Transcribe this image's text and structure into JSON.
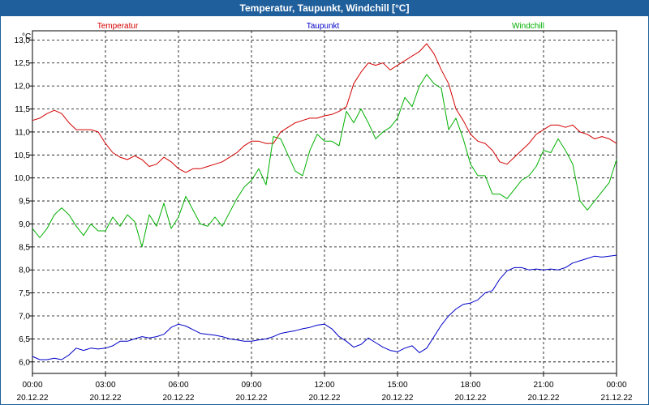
{
  "window": {
    "title": "Temperatur, Taupunkt, Windchill [°C]"
  },
  "colors": {
    "temperatur": "#d40000",
    "taupunkt": "#0000c8",
    "windchill": "#00b000",
    "titlebar": "#1f5f9b"
  },
  "chart_data": {
    "type": "line",
    "title": "Temperatur, Taupunkt, Windchill [°C]",
    "ylabel": "°C",
    "ylim": [
      5.75,
      13.2
    ],
    "xlim": [
      0,
      24
    ],
    "y_ticks": [
      "13,0",
      "12,5",
      "12,0",
      "11,5",
      "11,0",
      "10,5",
      "10,0",
      "9,5",
      "9,0",
      "8,5",
      "8,0",
      "7,5",
      "7,0",
      "6,5",
      "6,0"
    ],
    "y_tick_values": [
      13.0,
      12.5,
      12.0,
      11.5,
      11.0,
      10.5,
      10.0,
      9.5,
      9.0,
      8.5,
      8.0,
      7.5,
      7.0,
      6.5,
      6.0
    ],
    "x_tick_values": [
      0,
      3,
      6,
      9,
      12,
      15,
      18,
      21,
      24
    ],
    "x_ticks": [
      {
        "time": "00:00",
        "date": "20.12.22"
      },
      {
        "time": "03:00",
        "date": "20.12.22"
      },
      {
        "time": "06:00",
        "date": "20.12.22"
      },
      {
        "time": "09:00",
        "date": "20.12.22"
      },
      {
        "time": "12:00",
        "date": "20.12.22"
      },
      {
        "time": "15:00",
        "date": "20.12.22"
      },
      {
        "time": "18:00",
        "date": "20.12.22"
      },
      {
        "time": "21:00",
        "date": "20.12.22"
      },
      {
        "time": "00:00",
        "date": "21.12.22"
      }
    ],
    "grid": true,
    "series": [
      {
        "name": "Temperatur",
        "color": "#d40000",
        "points": [
          [
            0,
            11.25
          ],
          [
            0.3,
            11.3
          ],
          [
            0.6,
            11.4
          ],
          [
            0.9,
            11.47
          ],
          [
            1.2,
            11.4
          ],
          [
            1.5,
            11.2
          ],
          [
            1.8,
            11.05
          ],
          [
            2.1,
            11.05
          ],
          [
            2.4,
            11.05
          ],
          [
            2.7,
            11.0
          ],
          [
            3.0,
            10.75
          ],
          [
            3.3,
            10.55
          ],
          [
            3.6,
            10.45
          ],
          [
            3.9,
            10.4
          ],
          [
            4.2,
            10.48
          ],
          [
            4.5,
            10.4
          ],
          [
            4.8,
            10.25
          ],
          [
            5.1,
            10.3
          ],
          [
            5.4,
            10.45
          ],
          [
            5.7,
            10.35
          ],
          [
            6.0,
            10.2
          ],
          [
            6.3,
            10.12
          ],
          [
            6.6,
            10.2
          ],
          [
            6.9,
            10.2
          ],
          [
            7.2,
            10.25
          ],
          [
            7.5,
            10.3
          ],
          [
            7.8,
            10.35
          ],
          [
            8.1,
            10.45
          ],
          [
            8.4,
            10.55
          ],
          [
            8.7,
            10.7
          ],
          [
            9.0,
            10.8
          ],
          [
            9.3,
            10.8
          ],
          [
            9.6,
            10.75
          ],
          [
            9.9,
            10.75
          ],
          [
            10.2,
            11.0
          ],
          [
            10.5,
            11.1
          ],
          [
            10.8,
            11.2
          ],
          [
            11.1,
            11.25
          ],
          [
            11.4,
            11.3
          ],
          [
            11.7,
            11.3
          ],
          [
            12.0,
            11.35
          ],
          [
            12.3,
            11.38
          ],
          [
            12.6,
            11.45
          ],
          [
            12.9,
            11.55
          ],
          [
            13.2,
            12.05
          ],
          [
            13.5,
            12.3
          ],
          [
            13.8,
            12.5
          ],
          [
            14.1,
            12.45
          ],
          [
            14.4,
            12.5
          ],
          [
            14.7,
            12.35
          ],
          [
            15.0,
            12.45
          ],
          [
            15.3,
            12.55
          ],
          [
            15.6,
            12.65
          ],
          [
            15.9,
            12.75
          ],
          [
            16.2,
            12.92
          ],
          [
            16.5,
            12.7
          ],
          [
            16.8,
            12.35
          ],
          [
            17.1,
            12.05
          ],
          [
            17.4,
            11.5
          ],
          [
            17.7,
            11.25
          ],
          [
            18.0,
            10.95
          ],
          [
            18.3,
            10.8
          ],
          [
            18.6,
            10.75
          ],
          [
            18.9,
            10.6
          ],
          [
            19.2,
            10.35
          ],
          [
            19.5,
            10.3
          ],
          [
            19.8,
            10.45
          ],
          [
            20.1,
            10.6
          ],
          [
            20.4,
            10.75
          ],
          [
            20.7,
            10.95
          ],
          [
            21.0,
            11.05
          ],
          [
            21.3,
            11.15
          ],
          [
            21.6,
            11.15
          ],
          [
            21.9,
            11.1
          ],
          [
            22.2,
            11.15
          ],
          [
            22.5,
            11.0
          ],
          [
            22.8,
            10.95
          ],
          [
            23.1,
            10.85
          ],
          [
            23.4,
            10.9
          ],
          [
            23.7,
            10.85
          ],
          [
            24.0,
            10.75
          ]
        ]
      },
      {
        "name": "Taupunkt",
        "color": "#0000c8",
        "points": [
          [
            0,
            6.12
          ],
          [
            0.3,
            6.05
          ],
          [
            0.6,
            6.05
          ],
          [
            0.9,
            6.08
          ],
          [
            1.2,
            6.05
          ],
          [
            1.5,
            6.15
          ],
          [
            1.8,
            6.3
          ],
          [
            2.1,
            6.25
          ],
          [
            2.4,
            6.3
          ],
          [
            2.7,
            6.28
          ],
          [
            3.0,
            6.3
          ],
          [
            3.3,
            6.35
          ],
          [
            3.6,
            6.45
          ],
          [
            3.9,
            6.45
          ],
          [
            4.2,
            6.5
          ],
          [
            4.5,
            6.55
          ],
          [
            4.8,
            6.52
          ],
          [
            5.1,
            6.55
          ],
          [
            5.4,
            6.6
          ],
          [
            5.7,
            6.75
          ],
          [
            6.0,
            6.82
          ],
          [
            6.3,
            6.78
          ],
          [
            6.6,
            6.7
          ],
          [
            6.9,
            6.62
          ],
          [
            7.2,
            6.6
          ],
          [
            7.5,
            6.58
          ],
          [
            7.8,
            6.55
          ],
          [
            8.1,
            6.5
          ],
          [
            8.4,
            6.48
          ],
          [
            8.7,
            6.45
          ],
          [
            9.0,
            6.45
          ],
          [
            9.3,
            6.48
          ],
          [
            9.6,
            6.5
          ],
          [
            9.9,
            6.55
          ],
          [
            10.2,
            6.62
          ],
          [
            10.5,
            6.65
          ],
          [
            10.8,
            6.68
          ],
          [
            11.1,
            6.72
          ],
          [
            11.4,
            6.75
          ],
          [
            11.7,
            6.8
          ],
          [
            12.0,
            6.82
          ],
          [
            12.3,
            6.72
          ],
          [
            12.6,
            6.55
          ],
          [
            12.9,
            6.45
          ],
          [
            13.2,
            6.32
          ],
          [
            13.5,
            6.38
          ],
          [
            13.8,
            6.52
          ],
          [
            14.1,
            6.42
          ],
          [
            14.4,
            6.32
          ],
          [
            14.7,
            6.25
          ],
          [
            15.0,
            6.22
          ],
          [
            15.3,
            6.3
          ],
          [
            15.6,
            6.35
          ],
          [
            15.9,
            6.2
          ],
          [
            16.2,
            6.3
          ],
          [
            16.5,
            6.55
          ],
          [
            16.8,
            6.8
          ],
          [
            17.1,
            7.0
          ],
          [
            17.4,
            7.15
          ],
          [
            17.7,
            7.25
          ],
          [
            18.0,
            7.28
          ],
          [
            18.3,
            7.35
          ],
          [
            18.6,
            7.5
          ],
          [
            18.9,
            7.55
          ],
          [
            19.2,
            7.8
          ],
          [
            19.5,
            7.98
          ],
          [
            19.8,
            8.05
          ],
          [
            20.1,
            8.05
          ],
          [
            20.4,
            8.0
          ],
          [
            20.7,
            8.02
          ],
          [
            21.0,
            8.0
          ],
          [
            21.3,
            8.02
          ],
          [
            21.6,
            8.0
          ],
          [
            21.9,
            8.05
          ],
          [
            22.2,
            8.15
          ],
          [
            22.5,
            8.2
          ],
          [
            22.8,
            8.25
          ],
          [
            23.1,
            8.3
          ],
          [
            23.4,
            8.28
          ],
          [
            23.7,
            8.3
          ],
          [
            24.0,
            8.32
          ]
        ]
      },
      {
        "name": "Windchill",
        "color": "#00b000",
        "points": [
          [
            0,
            8.9
          ],
          [
            0.3,
            8.7
          ],
          [
            0.6,
            8.9
          ],
          [
            0.9,
            9.2
          ],
          [
            1.2,
            9.35
          ],
          [
            1.5,
            9.2
          ],
          [
            1.8,
            8.95
          ],
          [
            2.1,
            8.75
          ],
          [
            2.4,
            9.0
          ],
          [
            2.7,
            8.85
          ],
          [
            3.0,
            8.85
          ],
          [
            3.3,
            9.15
          ],
          [
            3.6,
            8.95
          ],
          [
            3.9,
            9.2
          ],
          [
            4.2,
            9.05
          ],
          [
            4.5,
            8.5
          ],
          [
            4.8,
            9.2
          ],
          [
            5.1,
            8.95
          ],
          [
            5.4,
            9.45
          ],
          [
            5.7,
            8.9
          ],
          [
            6.0,
            9.15
          ],
          [
            6.3,
            9.6
          ],
          [
            6.6,
            9.3
          ],
          [
            6.9,
            9.0
          ],
          [
            7.2,
            8.95
          ],
          [
            7.5,
            9.15
          ],
          [
            7.8,
            8.95
          ],
          [
            8.1,
            9.25
          ],
          [
            8.4,
            9.55
          ],
          [
            8.7,
            9.8
          ],
          [
            9.0,
            9.95
          ],
          [
            9.3,
            10.2
          ],
          [
            9.6,
            9.85
          ],
          [
            9.9,
            10.9
          ],
          [
            10.2,
            10.85
          ],
          [
            10.5,
            10.5
          ],
          [
            10.8,
            10.15
          ],
          [
            11.1,
            10.05
          ],
          [
            11.4,
            10.6
          ],
          [
            11.7,
            10.95
          ],
          [
            12.0,
            10.8
          ],
          [
            12.3,
            10.8
          ],
          [
            12.6,
            10.7
          ],
          [
            12.9,
            11.45
          ],
          [
            13.2,
            11.2
          ],
          [
            13.5,
            11.5
          ],
          [
            13.8,
            11.2
          ],
          [
            14.1,
            10.85
          ],
          [
            14.4,
            11.0
          ],
          [
            14.7,
            11.1
          ],
          [
            15.0,
            11.3
          ],
          [
            15.3,
            11.75
          ],
          [
            15.6,
            11.55
          ],
          [
            15.9,
            12.0
          ],
          [
            16.2,
            12.25
          ],
          [
            16.5,
            12.05
          ],
          [
            16.8,
            11.95
          ],
          [
            17.1,
            11.05
          ],
          [
            17.4,
            11.3
          ],
          [
            17.7,
            10.85
          ],
          [
            18.0,
            10.3
          ],
          [
            18.3,
            10.05
          ],
          [
            18.6,
            10.05
          ],
          [
            18.9,
            9.65
          ],
          [
            19.2,
            9.65
          ],
          [
            19.5,
            9.55
          ],
          [
            19.8,
            9.75
          ],
          [
            20.1,
            9.95
          ],
          [
            20.4,
            10.05
          ],
          [
            20.7,
            10.25
          ],
          [
            21.0,
            10.6
          ],
          [
            21.3,
            10.55
          ],
          [
            21.6,
            10.85
          ],
          [
            21.9,
            10.6
          ],
          [
            22.2,
            10.3
          ],
          [
            22.5,
            9.5
          ],
          [
            22.8,
            9.3
          ],
          [
            23.1,
            9.5
          ],
          [
            23.4,
            9.7
          ],
          [
            23.7,
            9.9
          ],
          [
            24.0,
            10.4
          ]
        ]
      }
    ]
  }
}
